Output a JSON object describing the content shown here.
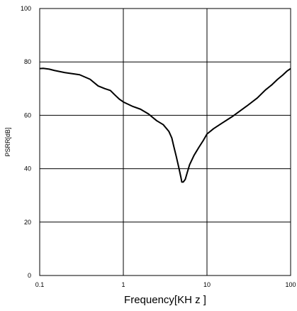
{
  "chart_data": {
    "type": "line",
    "title": "",
    "xlabel": "Frequency[KH z ]",
    "ylabel": "PSRR[dB]",
    "xscale": "log",
    "xlim": [
      0.1,
      100
    ],
    "ylim": [
      0,
      100
    ],
    "x_ticks": [
      "0.1",
      "1",
      "10",
      "100"
    ],
    "y_ticks": [
      "0",
      "20",
      "40",
      "60",
      "80",
      "100"
    ],
    "grid": true,
    "legend": "none",
    "line_color": "#000000",
    "series": [
      {
        "x": [
          0.1,
          0.11,
          0.13,
          0.15,
          0.2,
          0.3,
          0.4,
          0.5,
          0.6,
          0.7,
          0.8,
          0.9,
          1.0,
          1.3,
          1.6,
          2.0,
          2.5,
          3.0,
          3.5,
          3.8,
          4.0,
          4.3,
          4.6,
          4.9,
          5.0,
          5.2,
          5.5,
          5.8,
          6.2,
          7.0,
          8.0,
          9.0,
          10,
          12,
          15,
          20,
          30,
          40,
          50,
          60,
          70,
          80,
          90,
          100
        ],
        "y": [
          77.5,
          77.6,
          77.3,
          76.8,
          76.0,
          75.2,
          73.5,
          71.0,
          70.0,
          69.3,
          67.5,
          66.0,
          65.0,
          63.3,
          62.3,
          60.5,
          58.0,
          56.5,
          54.0,
          51.5,
          48.5,
          44.5,
          40.5,
          36.5,
          35.0,
          35.0,
          36.0,
          38.5,
          41.5,
          45.0,
          48.0,
          50.5,
          53.0,
          55.0,
          57.0,
          59.5,
          63.5,
          66.5,
          69.5,
          71.5,
          73.5,
          75.0,
          76.5,
          77.5
        ]
      }
    ]
  }
}
